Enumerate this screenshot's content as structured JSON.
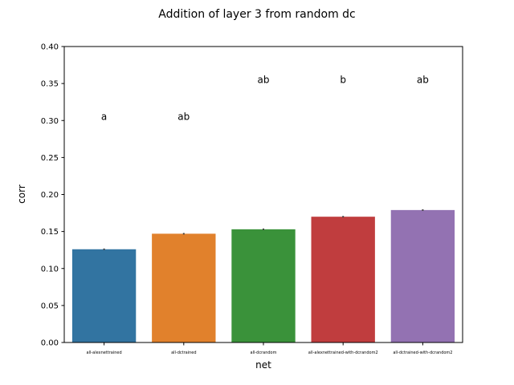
{
  "chart_data": {
    "type": "bar",
    "title": "Addition of layer 3 from random dc",
    "xlabel": "net",
    "ylabel": "corr",
    "ylim": [
      0,
      0.4
    ],
    "yticks": [
      "0.00",
      "0.05",
      "0.10",
      "0.15",
      "0.20",
      "0.25",
      "0.30",
      "0.35",
      "0.40"
    ],
    "categories": [
      "all-alexnettrained",
      "all-dctrained",
      "all-dcrandom",
      "all-alexnettrained-with-dcrandom2",
      "all-dctrained-with-dcrandom2"
    ],
    "values": [
      0.126,
      0.147,
      0.153,
      0.17,
      0.179
    ],
    "errors": [
      0.001,
      0.001,
      0.001,
      0.001,
      0.001
    ],
    "colors": [
      "#3274a1",
      "#e1812c",
      "#3a923a",
      "#c03d3e",
      "#9372b2"
    ],
    "annotations": [
      {
        "text": "a",
        "y": 0.305
      },
      {
        "text": "ab",
        "y": 0.305
      },
      {
        "text": "ab",
        "y": 0.355
      },
      {
        "text": "b",
        "y": 0.355
      },
      {
        "text": "ab",
        "y": 0.355
      }
    ],
    "grid": false,
    "legend": "none"
  }
}
